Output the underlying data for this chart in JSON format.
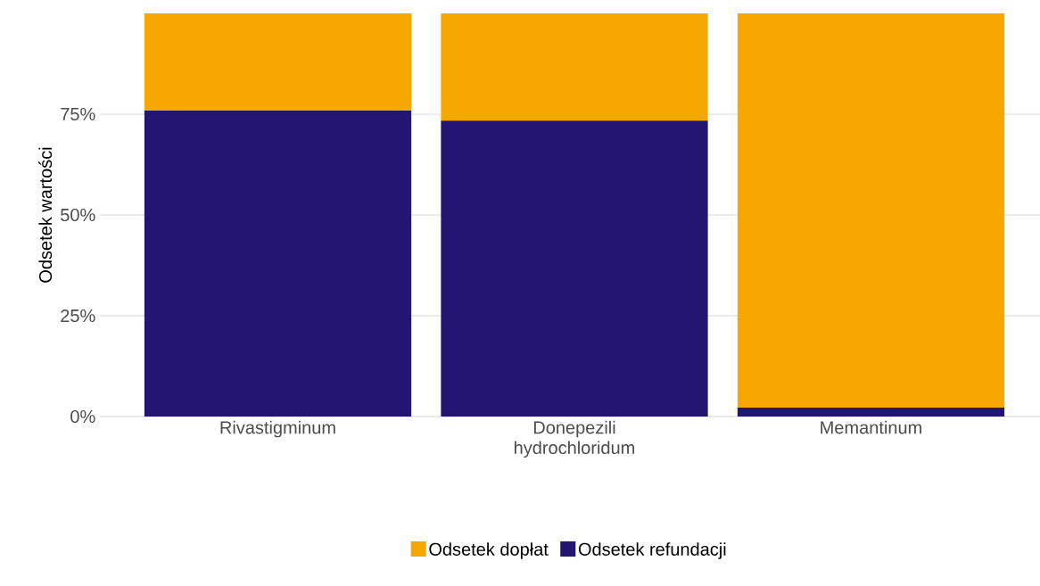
{
  "chart_data": {
    "type": "bar",
    "stacked": true,
    "ylabel": "Odsetek wartości",
    "categories": [
      "Rivastigminum",
      "Donepezili hydrochloridum",
      "Memantinum"
    ],
    "series": [
      {
        "name": "Odsetek refundacji",
        "color": "#251572",
        "values": [
          75.9,
          73.4,
          2.2
        ]
      },
      {
        "name": "Odsetek dopłat",
        "color": "#f6a800",
        "values": [
          24.1,
          26.6,
          97.8
        ]
      }
    ],
    "ylim": [
      0,
      100
    ],
    "yticks": [
      {
        "value": 0,
        "label": "0%"
      },
      {
        "value": 25,
        "label": "25%"
      },
      {
        "value": 50,
        "label": "50%"
      },
      {
        "value": 75,
        "label": "75%"
      }
    ],
    "grid": "y",
    "legend": "bottom"
  }
}
